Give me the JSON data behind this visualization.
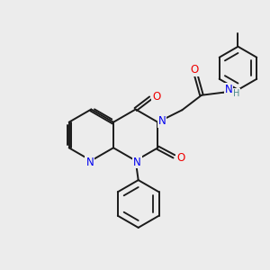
{
  "background_color": "#ececec",
  "bond_color": "#1a1a1a",
  "N_color": "#0000ee",
  "O_color": "#ee0000",
  "H_color": "#4a8a8a",
  "lw": 1.4,
  "fs": 8.5,
  "fs_small": 7.0,
  "xlim": [
    0,
    10
  ],
  "ylim": [
    0,
    10
  ]
}
